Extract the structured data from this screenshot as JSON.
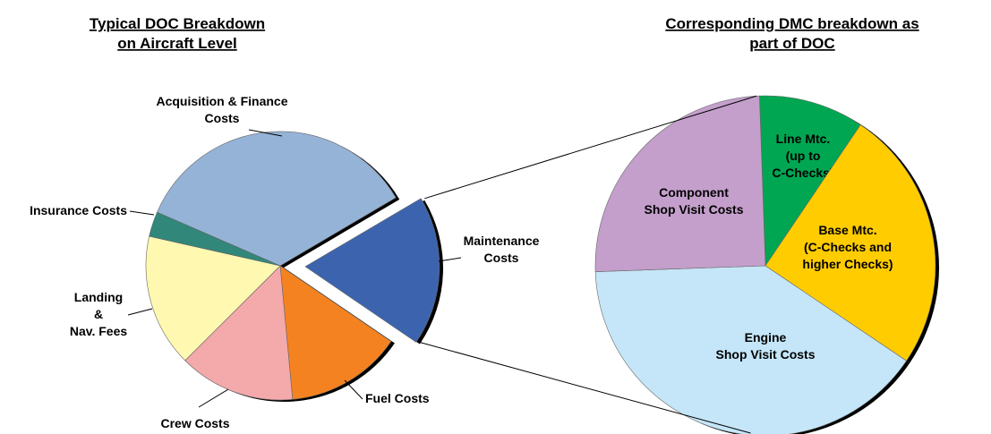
{
  "chart_data": [
    {
      "type": "pie",
      "title": "Typical DOC Breakdown\non Aircraft Level",
      "categories": [
        "Acquisition & Finance\nCosts",
        "Maintenance\nCosts",
        "Fuel Costs",
        "Crew Costs",
        "Landing\n&\nNav. Fees",
        "Insurance Costs"
      ],
      "values": [
        35,
        18,
        14,
        14,
        16,
        3
      ],
      "colors": [
        "#95b3d7",
        "#3c64ae",
        "#f58220",
        "#f4a9ab",
        "#fff8b0",
        "#31877a"
      ]
    },
    {
      "type": "pie",
      "title": "Corresponding DMC breakdown as\npart of DOC",
      "categories": [
        "Line Mtc.\n(up to\nC-Checks)",
        "Base Mtc.\n(C-Checks and\nhigher Checks)",
        "Engine\nShop Visit Costs",
        "Component\nShop Visit Costs"
      ],
      "values": [
        10,
        25,
        40,
        25
      ],
      "colors": [
        "#00a651",
        "#ffcc00",
        "#c5e6f8",
        "#c49fcb"
      ]
    }
  ]
}
